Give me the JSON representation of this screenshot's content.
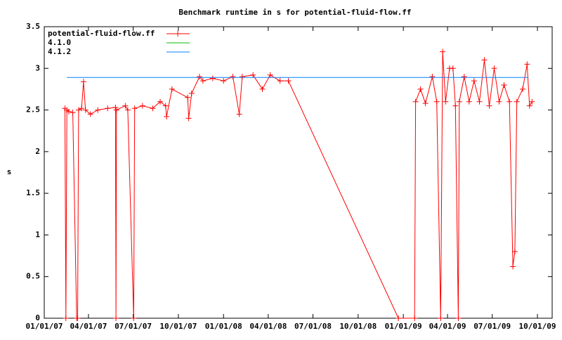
{
  "chart_data": {
    "type": "line",
    "title": "Benchmark runtime in s for potential-fluid-flow.ff",
    "y_label": "s",
    "xlim": [
      "2007-01-01",
      "2009-10-31"
    ],
    "xticks": [
      {
        "value": "2007-01-01",
        "label": "01/01/07"
      },
      {
        "value": "2007-04-01",
        "label": "04/01/07"
      },
      {
        "value": "2007-07-01",
        "label": "07/01/07"
      },
      {
        "value": "2007-10-01",
        "label": "10/01/07"
      },
      {
        "value": "2008-01-01",
        "label": "01/01/08"
      },
      {
        "value": "2008-04-01",
        "label": "04/01/08"
      },
      {
        "value": "2008-07-01",
        "label": "07/01/08"
      },
      {
        "value": "2008-10-01",
        "label": "10/01/08"
      },
      {
        "value": "2009-01-01",
        "label": "01/01/09"
      },
      {
        "value": "2009-04-01",
        "label": "04/01/09"
      },
      {
        "value": "2009-07-01",
        "label": "07/01/09"
      },
      {
        "value": "2009-10-01",
        "label": "10/01/09"
      }
    ],
    "ylim": [
      0,
      3.5
    ],
    "yticks": [
      0,
      0.5,
      1,
      1.5,
      2,
      2.5,
      3,
      3.5
    ],
    "legend": "top-left",
    "series": [
      {
        "name": "potential-fluid-flow.ff",
        "color": "#ff0000",
        "markers": true,
        "x": [
          "2007-02-12",
          "2007-02-14",
          "2007-02-16",
          "2007-02-20",
          "2007-02-28",
          "2007-03-08",
          "2007-03-10",
          "2007-03-12",
          "2007-03-18",
          "2007-03-22",
          "2007-03-26",
          "2007-04-05",
          "2007-04-20",
          "2007-05-10",
          "2007-05-26",
          "2007-05-27",
          "2007-05-28",
          "2007-06-15",
          "2007-06-20",
          "2007-07-02",
          "2007-07-04",
          "2007-07-20",
          "2007-08-10",
          "2007-08-25",
          "2007-09-05",
          "2007-09-07",
          "2007-09-18",
          "2007-10-20",
          "2007-10-22",
          "2007-10-28",
          "2007-11-13",
          "2007-11-20",
          "2007-12-10",
          "2008-01-01",
          "2008-01-20",
          "2008-02-02",
          "2008-02-08",
          "2008-03-01",
          "2008-03-20",
          "2008-04-05",
          "2008-04-25",
          "2008-05-12",
          "2008-12-22",
          "2009-01-24",
          "2009-01-26",
          "2009-02-05",
          "2009-02-15",
          "2009-03-01",
          "2009-03-10",
          "2009-03-18",
          "2009-03-22",
          "2009-03-28",
          "2009-04-05",
          "2009-04-12",
          "2009-04-17",
          "2009-04-23",
          "2009-04-25",
          "2009-05-05",
          "2009-05-15",
          "2009-05-25",
          "2009-06-05",
          "2009-06-15",
          "2009-06-25",
          "2009-07-05",
          "2009-07-15",
          "2009-07-25",
          "2009-08-05",
          "2009-08-12",
          "2009-08-16",
          "2009-08-20",
          "2009-09-01",
          "2009-09-10",
          "2009-09-15",
          "2009-09-20"
        ],
        "values": [
          2.52,
          0,
          2.5,
          2.48,
          2.47,
          0,
          0,
          2.5,
          2.52,
          2.84,
          2.5,
          2.45,
          2.5,
          2.52,
          2.53,
          0,
          2.5,
          2.55,
          2.5,
          0,
          2.52,
          2.55,
          2.52,
          2.6,
          2.55,
          2.42,
          2.75,
          2.65,
          2.4,
          2.7,
          2.9,
          2.85,
          2.88,
          2.85,
          2.9,
          2.45,
          2.9,
          2.92,
          2.75,
          2.92,
          2.85,
          2.85,
          0,
          0,
          2.6,
          2.75,
          2.58,
          2.9,
          2.6,
          0,
          3.2,
          2.6,
          3.0,
          3.0,
          2.55,
          0,
          2.6,
          2.9,
          2.6,
          2.85,
          2.6,
          3.1,
          2.55,
          3.0,
          2.6,
          2.8,
          2.6,
          0.62,
          0.8,
          2.6,
          2.75,
          3.05,
          2.55,
          2.6
        ]
      },
      {
        "name": "4.1.0",
        "color": "#00c000",
        "x": [],
        "values": []
      },
      {
        "name": "4.1.2",
        "color": "#0080ff",
        "x": [
          "2007-02-16",
          "2009-09-13"
        ],
        "values": [
          2.89,
          2.89
        ]
      }
    ]
  }
}
